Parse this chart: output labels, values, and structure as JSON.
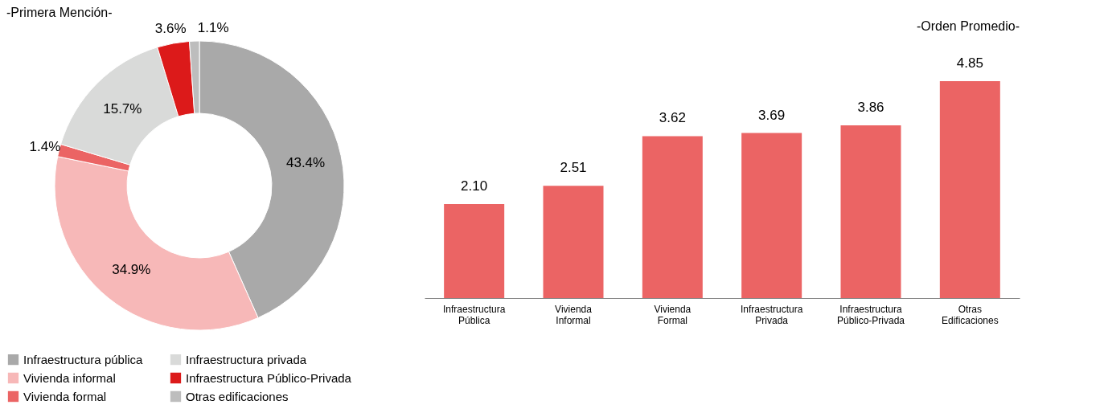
{
  "chart_data": [
    {
      "type": "donut",
      "title": "-Primera Mención-",
      "categories": [
        "Infraestructura pública",
        "Vivienda informal",
        "Vivienda formal",
        "Infraestructura privada",
        "Infraestructura Público-Privada",
        "Otras edificaciones"
      ],
      "values": [
        43.4,
        34.9,
        1.4,
        15.7,
        3.6,
        1.1
      ],
      "value_labels": [
        "43.4%",
        "34.9%",
        "1.4%",
        "15.7%",
        "3.6%",
        "1.1%"
      ],
      "colors": [
        "#a9a9a9",
        "#f7b8b8",
        "#eb6464",
        "#d9dad9",
        "#dc1a1a",
        "#bdbdbd"
      ],
      "legend": "bottom"
    },
    {
      "type": "bar",
      "title": "-Orden Promedio-",
      "categories": [
        "Infraestructura Pública",
        "Vivienda Informal",
        "Vivienda Formal",
        "Infraestructura Privada",
        "Infraestructura Público-Privada",
        "Otras Edificaciones"
      ],
      "values": [
        2.1,
        2.51,
        3.62,
        3.69,
        3.86,
        4.85
      ],
      "value_labels": [
        "2.10",
        "2.51",
        "3.62",
        "3.69",
        "3.86",
        "4.85"
      ],
      "color": "#eb6464"
    }
  ]
}
